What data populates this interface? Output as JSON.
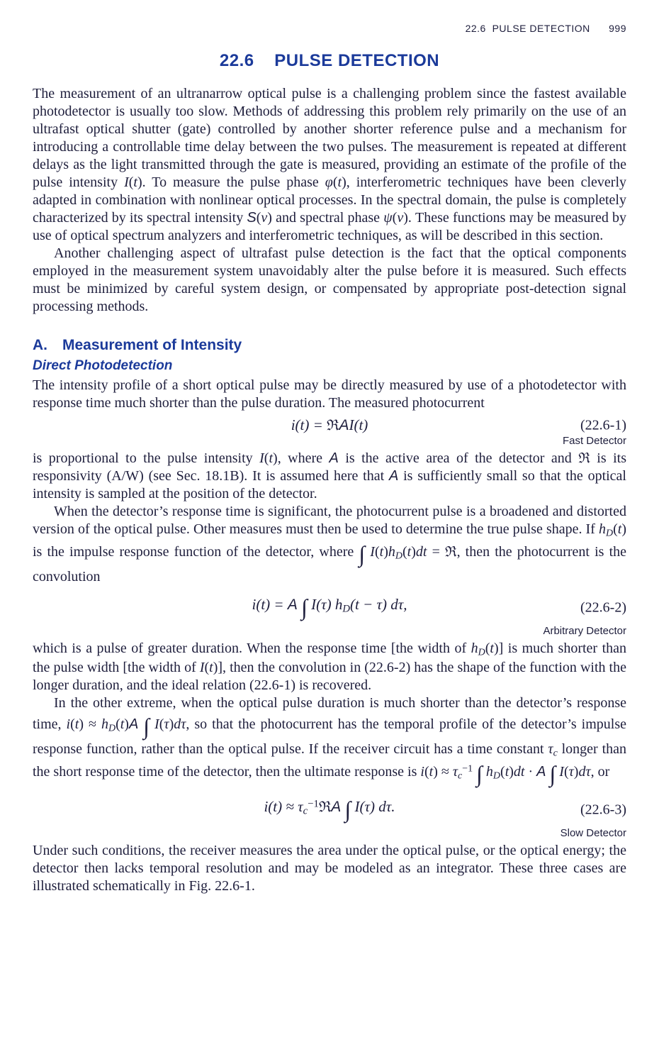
{
  "running_head": {
    "section_ref": "22.6",
    "section_name": "PULSE DETECTION",
    "page_no": "999"
  },
  "title": {
    "number": "22.6",
    "text": "PULSE DETECTION"
  },
  "subhead_A": "A. Measurement of Intensity",
  "subhead_B": "Direct Photodetection",
  "eq": {
    "e1_num": "(22.6-1)",
    "e1_label": "Fast Detector",
    "e2_num": "(22.6-2)",
    "e2_label": "Arbitrary Detector",
    "e3_num": "(22.6-3)",
    "e3_label": "Slow Detector"
  }
}
